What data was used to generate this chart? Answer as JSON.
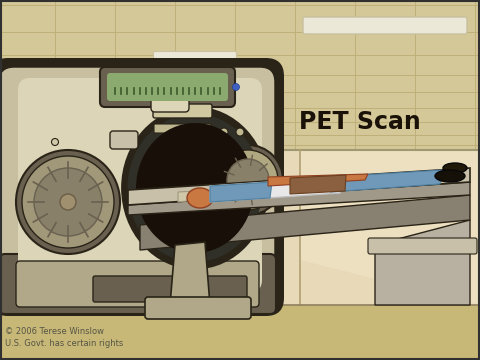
{
  "title": "PET Scan",
  "title_color": "#1a1208",
  "title_fontsize": 17,
  "copyright_text": "© 2006 Terese Winslow\nU.S. Govt. has certain rights",
  "copyright_fontsize": 6,
  "bg_wall_color": "#e8d9b8",
  "bg_ceiling_color": "#d5c898",
  "bg_floor_color": "#c8b878",
  "ceiling_tile_line": "#bfb07a",
  "ceiling_tile_bg": "#d8ca90",
  "right_wall_color": "#ece0c0",
  "wall_corner_color": "#d0c090",
  "light_bar_color": "#ece8d8",
  "light_bar_edge": "#c8c0a0",
  "machine_main": "#c8bfa0",
  "machine_shadow": "#6a6050",
  "machine_light": "#ddd5b8",
  "machine_dark_edge": "#2a2418",
  "machine_mid": "#b0a888",
  "machine_base_color": "#7a7060",
  "tunnel_dark": "#181008",
  "tunnel_ring": "#303028",
  "tunnel_inner": "#080808",
  "display_bg": "#c8bfa0",
  "display_screen": "#8aaa70",
  "display_screen_dark": "#3a5a28",
  "left_circle_color": "#a09878",
  "left_circle_inner": "#888068",
  "right_circle_color": "#b0a880",
  "table_top": "#c8c0a8",
  "table_side": "#a09888",
  "table_base_color": "#b0a888",
  "table_rail_color": "#888070",
  "patient_shirt": "#7098b8",
  "patient_gown": "#e8e8e8",
  "patient_skin": "#c87840",
  "patient_pants": "#8b6040",
  "patient_shoe": "#151008",
  "headrest_color": "#d0c8a8"
}
